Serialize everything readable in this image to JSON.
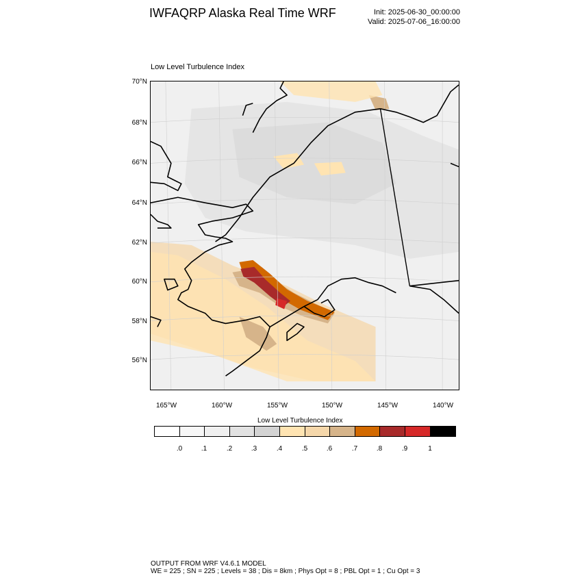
{
  "header": {
    "title": "IWFAQRP Alaska Real Time WRF",
    "init": "Init: 2025-06-30_00:00:00",
    "valid": "Valid: 2025-07-06_16:00:00"
  },
  "map": {
    "subtitle": "Low Level Turbulence Index",
    "lat_labels": [
      "70°N",
      "68°N",
      "66°N",
      "64°N",
      "62°N",
      "60°N",
      "58°N",
      "56°N"
    ],
    "lon_labels": [
      "165°W",
      "160°W",
      "155°W",
      "150°W",
      "145°W",
      "140°W"
    ]
  },
  "colorbar": {
    "title": "Low Level Turbulence Index",
    "labels": [
      ".0",
      ".1",
      ".2",
      ".3",
      ".4",
      ".5",
      ".6",
      ".7",
      ".8",
      ".9",
      "1"
    ],
    "colors": [
      "#ffffff",
      "#f7f7f7",
      "#f0f0f0",
      "#e2e2e2",
      "#d3d3d3",
      "#ffe4b2",
      "#f5d7aa",
      "#d6b48a",
      "#d26900",
      "#a82a2a",
      "#d62828",
      "#000000"
    ]
  },
  "footer": {
    "line1": "OUTPUT FROM WRF V4.6.1 MODEL",
    "line2": "WE = 225 ; SN = 225 ; Levels = 38 ; Dis = 8km ; Phys Opt = 8 ; PBL Opt = 1 ; Cu Opt = 3"
  }
}
